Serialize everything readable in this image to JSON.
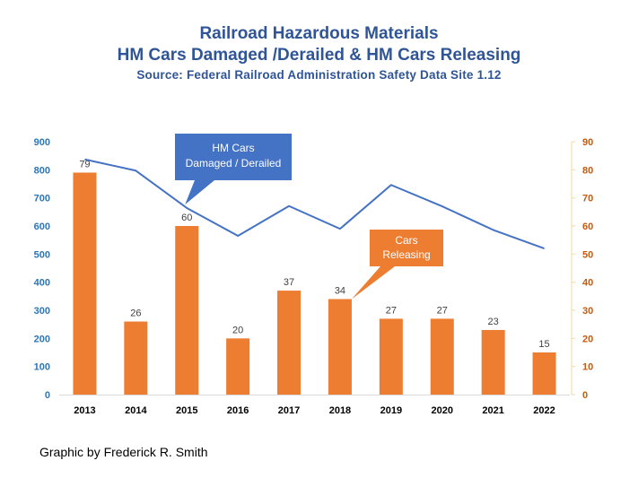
{
  "title": "Railroad Hazardous Materials",
  "subtitle": "HM Cars Damaged /Derailed & HM Cars Releasing",
  "source": "Source: Federal Railroad Administration  Safety Data Site 1.12",
  "credit": "Graphic by Frederick R. Smith",
  "colors": {
    "bar": "#ed7d31",
    "line": "#4472c4",
    "left_axis": "#2e75b6",
    "right_axis": "#c55a11",
    "title": "#2f5597",
    "callout_line": "#4472c4",
    "callout_bar": "#ed7d31"
  },
  "chart_data": {
    "type": "bar",
    "categories": [
      "2013",
      "2014",
      "2015",
      "2016",
      "2017",
      "2018",
      "2019",
      "2020",
      "2021",
      "2022"
    ],
    "series": [
      {
        "name": "Cars Releasing",
        "type": "bar",
        "axis": "right",
        "values": [
          79,
          26,
          60,
          20,
          37,
          34,
          27,
          27,
          23,
          15
        ],
        "data_labels": [
          "79",
          "26",
          "60",
          "20",
          "37",
          "34",
          "27",
          "27",
          "23",
          "15"
        ]
      },
      {
        "name": "HM Cars Damaged / Derailed",
        "type": "line",
        "axis": "left",
        "values": [
          837,
          797,
          664,
          565,
          671,
          590,
          746,
          670,
          586,
          520
        ]
      }
    ],
    "y_left": {
      "lim": [
        0,
        900
      ],
      "ticks": [
        "0",
        "100",
        "200",
        "300",
        "400",
        "500",
        "600",
        "700",
        "800",
        "900"
      ]
    },
    "y_right": {
      "lim": [
        0,
        90
      ],
      "ticks": [
        "0",
        "10",
        "20",
        "30",
        "40",
        "50",
        "60",
        "70",
        "80",
        "90"
      ]
    },
    "grid": false,
    "annotations": [
      {
        "text": [
          "HM Cars",
          "Damaged / Derailed"
        ],
        "target_series": "line",
        "target_category": "2015"
      },
      {
        "text": [
          "Cars",
          "Releasing"
        ],
        "target_series": "bar",
        "target_category": "2018"
      }
    ]
  }
}
